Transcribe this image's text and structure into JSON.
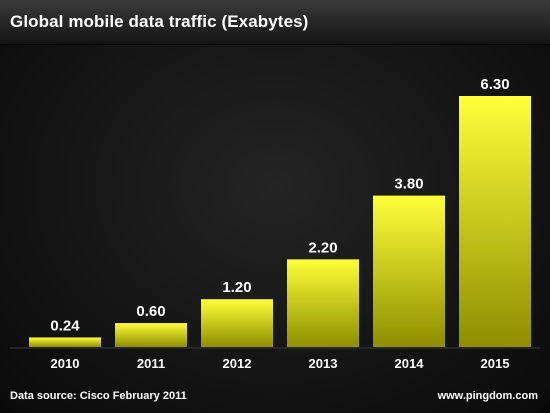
{
  "title": "Global mobile data traffic (Exabytes)",
  "footer": {
    "source": "Data source: Cisco February 2011",
    "site": "www.pingdom.com"
  },
  "colors": {
    "bar_top": "#ffff3a",
    "bar_bottom": "#8e8e00",
    "label": "#ffffff",
    "background": "#1a1a1a"
  },
  "chart_data": {
    "type": "bar",
    "categories": [
      "2010",
      "2011",
      "2012",
      "2013",
      "2014",
      "2015"
    ],
    "values": [
      0.24,
      0.6,
      1.2,
      2.2,
      3.8,
      6.3
    ],
    "value_labels": [
      "0.24",
      "0.60",
      "1.20",
      "2.20",
      "3.80",
      "6.30"
    ],
    "title": "Global mobile data traffic (Exabytes)",
    "xlabel": "",
    "ylabel": "",
    "ylim": [
      0,
      6.3
    ],
    "grid": false,
    "legend": "none"
  }
}
